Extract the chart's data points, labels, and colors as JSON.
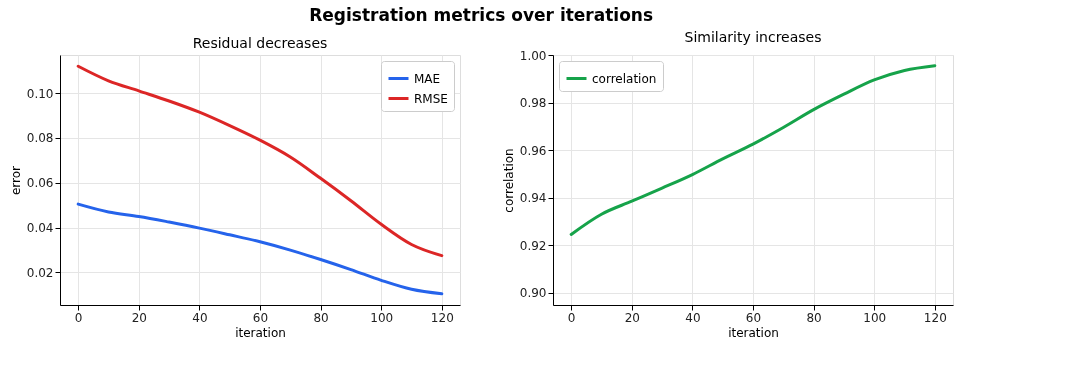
{
  "chart_data": [
    {
      "type": "line",
      "title": "Registration metrics over iterations",
      "subtitle": "Residual decreases",
      "xlabel": "iteration",
      "ylabel": "error",
      "x": [
        0,
        10,
        20,
        30,
        40,
        50,
        60,
        70,
        80,
        90,
        100,
        110,
        120
      ],
      "series": [
        {
          "name": "MAE",
          "color": "#2563eb",
          "values": [
            0.0505,
            0.047,
            0.045,
            0.0425,
            0.0398,
            0.0368,
            0.0337,
            0.03,
            0.0258,
            0.0213,
            0.0165,
            0.0125,
            0.0105
          ]
        },
        {
          "name": "RMSE",
          "color": "#dc2626",
          "values": [
            0.112,
            0.1055,
            0.101,
            0.0965,
            0.0915,
            0.0855,
            0.079,
            0.0715,
            0.062,
            0.052,
            0.0415,
            0.0325,
            0.0275
          ]
        }
      ],
      "xlim": [
        -6,
        126
      ],
      "xticks": [
        0,
        20,
        40,
        60,
        80,
        100,
        120
      ],
      "ylim": [
        0.0055,
        0.117
      ],
      "yticks": [
        0.02,
        0.04,
        0.06,
        0.08,
        {
          "value": 0.1,
          "label": "0.10"
        }
      ],
      "grid": true,
      "legend": "top right",
      "line_style": "solid",
      "marker": "none"
    },
    {
      "type": "line",
      "subtitle": "Similarity increases",
      "xlabel": "iteration",
      "ylabel": "correlation",
      "x": [
        0,
        10,
        20,
        30,
        40,
        50,
        60,
        70,
        80,
        90,
        100,
        110,
        120
      ],
      "series": [
        {
          "name": "correlation",
          "color": "#16a34a",
          "values": [
            0.9245,
            0.933,
            0.9385,
            0.944,
            0.9497,
            0.9563,
            0.9625,
            0.9695,
            0.977,
            0.9835,
            0.9895,
            0.9935,
            0.9955
          ]
        }
      ],
      "xlim": [
        -6,
        126
      ],
      "xticks": [
        0,
        20,
        40,
        60,
        80,
        100,
        120
      ],
      "ylim": [
        0.8948,
        1.0
      ],
      "yticks": [
        {
          "value": 0.9,
          "label": "0.90"
        },
        0.92,
        0.94,
        0.96,
        0.98,
        {
          "value": 1.0,
          "label": "1.00"
        }
      ],
      "grid": true,
      "legend": "top left",
      "line_style": "solid",
      "marker": "none"
    }
  ]
}
